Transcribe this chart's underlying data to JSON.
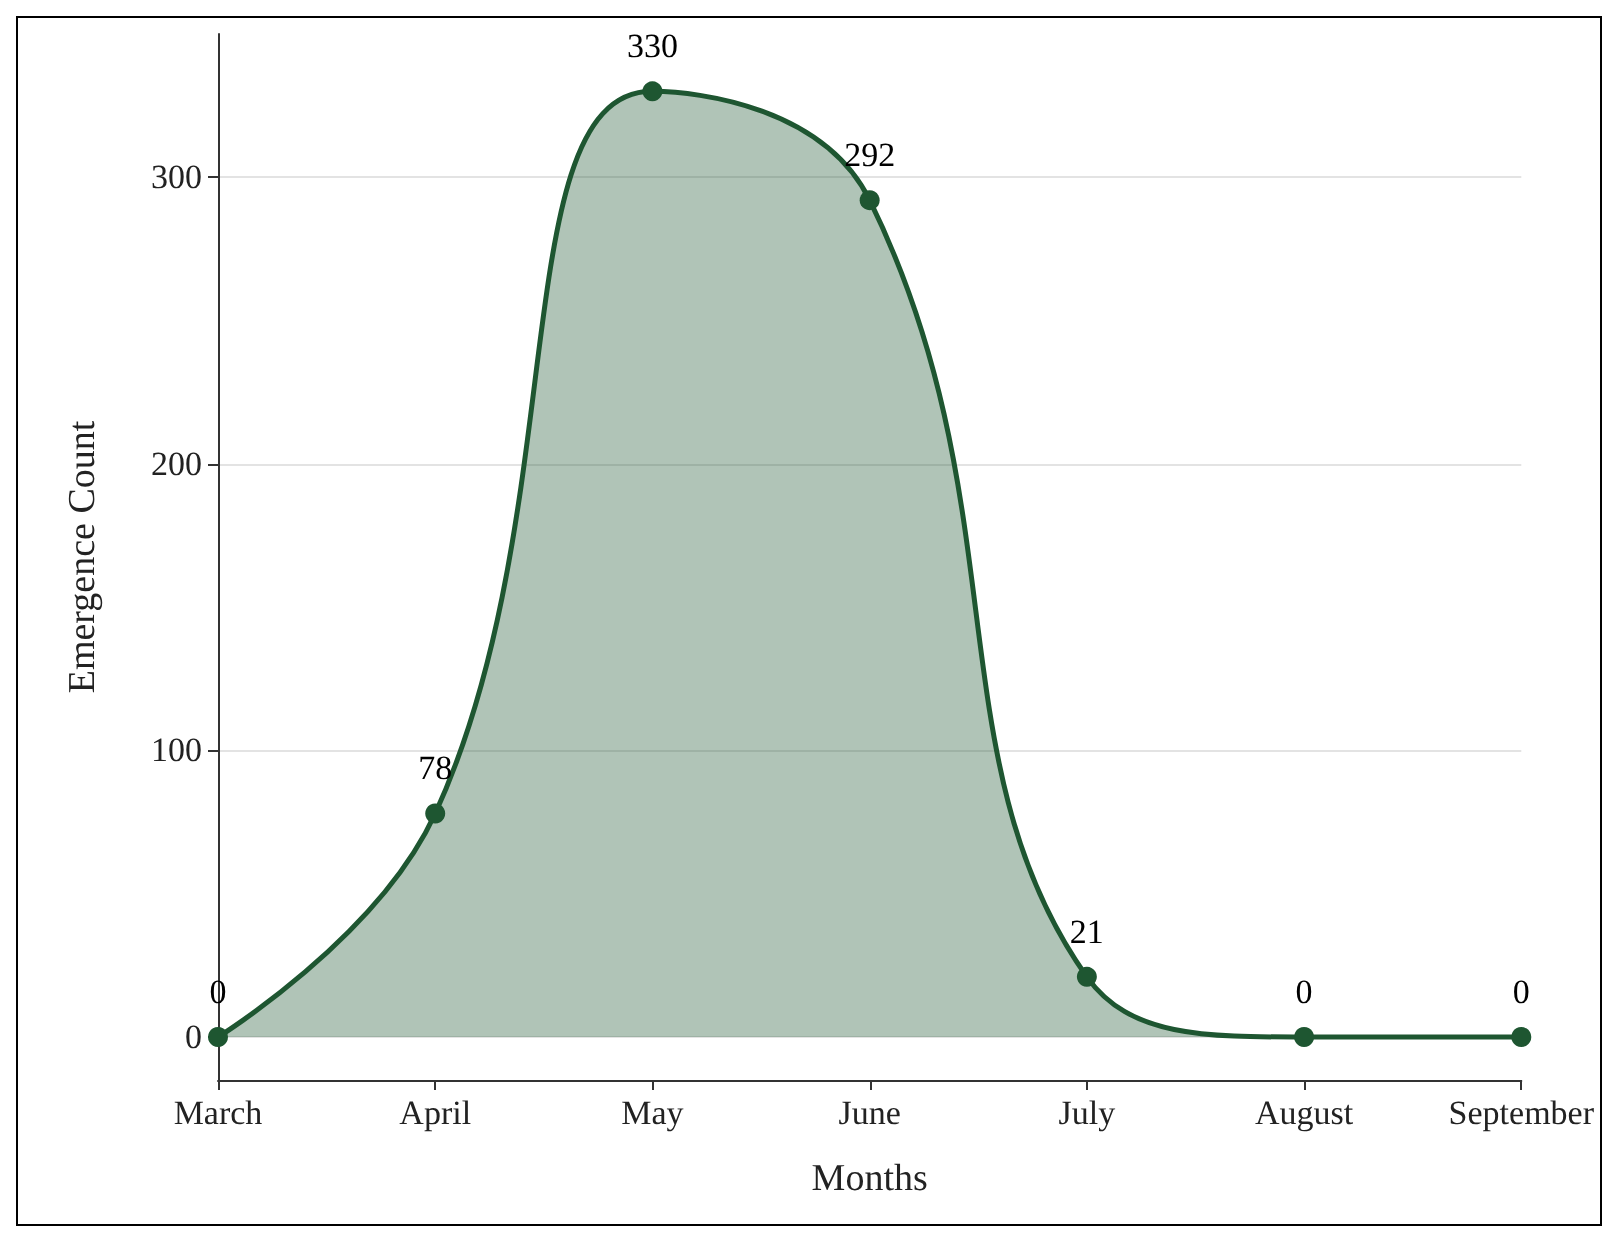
{
  "chart_data": {
    "type": "area",
    "xlabel": "Months",
    "ylabel": "Emergence Count",
    "categories": [
      "March",
      "April",
      "May",
      "June",
      "July",
      "August",
      "September"
    ],
    "series": [
      {
        "color": "#1e5631",
        "values": [
          0,
          78,
          330,
          292,
          21,
          0,
          0
        ]
      }
    ],
    "ylim": [
      -15,
      350
    ],
    "yticks": [
      0,
      100,
      200,
      300
    ],
    "grid": "y",
    "data_labels": true,
    "marker": "circle",
    "line_style": "solid"
  }
}
